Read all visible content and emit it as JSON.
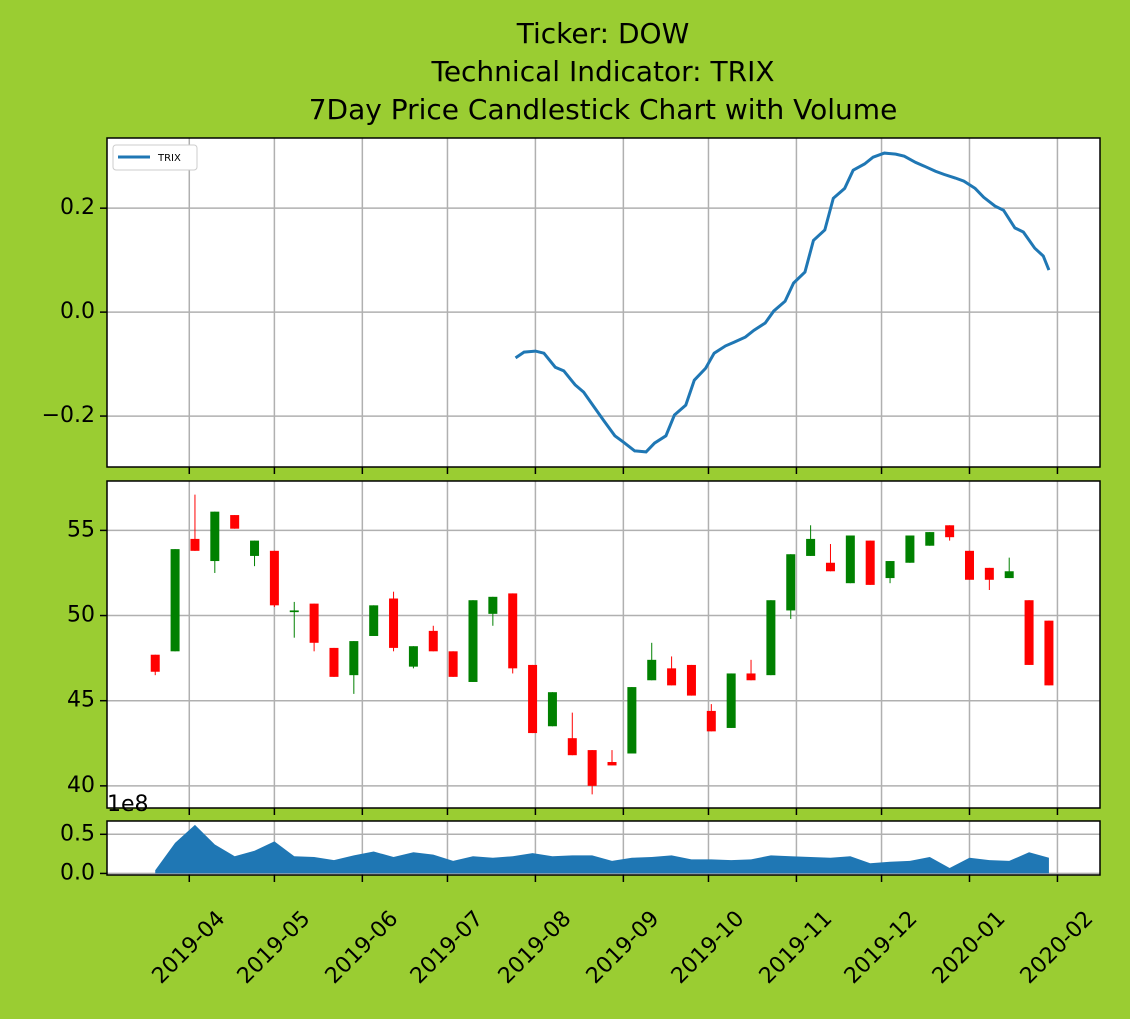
{
  "chart_data": [
    {
      "type": "line",
      "title": [
        "Ticker: DOW",
        "Technical Indicator: TRIX",
        "7Day Price Candlestick Chart with Volume"
      ],
      "x": [
        18102,
        18105,
        18109,
        18112,
        18116,
        18119,
        18123,
        18126,
        18130,
        18133,
        18137,
        18140,
        18144,
        18148,
        18151,
        18155,
        18158,
        18162,
        18165,
        18169,
        18172,
        18176,
        18179,
        18183,
        18186,
        18190,
        18193,
        18197,
        18200,
        18204,
        18207,
        18211,
        18214,
        18218,
        18221,
        18225,
        18228,
        18232,
        18236,
        18239,
        18243,
        18246,
        18250,
        18253,
        18257,
        18260,
        18264,
        18267,
        18271,
        18274,
        18278,
        18281,
        18285,
        18288,
        18290
      ],
      "series": [
        {
          "name": "TRIX",
          "color": "#1f77b4",
          "values": [
            -0.088,
            -0.077,
            -0.075,
            -0.079,
            -0.106,
            -0.113,
            -0.14,
            -0.154,
            -0.185,
            -0.208,
            -0.238,
            -0.25,
            -0.267,
            -0.269,
            -0.252,
            -0.238,
            -0.198,
            -0.179,
            -0.131,
            -0.108,
            -0.079,
            -0.065,
            -0.058,
            -0.048,
            -0.035,
            -0.021,
            0.002,
            0.021,
            0.056,
            0.077,
            0.138,
            0.158,
            0.219,
            0.238,
            0.273,
            0.285,
            0.298,
            0.306,
            0.304,
            0.3,
            0.288,
            0.281,
            0.271,
            0.265,
            0.258,
            0.252,
            0.238,
            0.221,
            0.204,
            0.196,
            0.162,
            0.154,
            0.123,
            0.108,
            0.081
          ]
        }
      ],
      "xlim": [
        17958,
        18308
      ],
      "ylim": [
        -0.298,
        0.335
      ],
      "yticks": [
        {
          "value": -0.2,
          "label": "−0.2"
        },
        {
          "value": 0,
          "label": "0.0"
        },
        0.2
      ],
      "grid": true,
      "legend": "upper left"
    },
    {
      "type": "candlestick",
      "x": [
        17975,
        17982,
        17989,
        17996,
        18003,
        18010,
        18017,
        18024,
        18031,
        18038,
        18045,
        18052,
        18059,
        18066,
        18073,
        18080,
        18087,
        18094,
        18101,
        18108,
        18115,
        18122,
        18129,
        18136,
        18143,
        18150,
        18157,
        18164,
        18171,
        18178,
        18185,
        18192,
        18199,
        18206,
        18213,
        18220,
        18227,
        18234,
        18241,
        18248,
        18255,
        18262,
        18269,
        18276,
        18283,
        18290
      ],
      "open": [
        47.7,
        47.9,
        54.5,
        53.2,
        55.9,
        53.5,
        53.8,
        50.2,
        50.7,
        48.1,
        46.5,
        48.8,
        51.0,
        47.0,
        49.1,
        47.9,
        46.1,
        50.1,
        51.3,
        47.1,
        43.5,
        42.8,
        42.1,
        41.4,
        41.9,
        46.2,
        46.9,
        47.1,
        44.4,
        43.4,
        46.6,
        46.5,
        50.3,
        53.5,
        53.1,
        51.9,
        54.4,
        52.2,
        53.1,
        54.1,
        55.3,
        53.8,
        52.8,
        52.2,
        50.9,
        49.7
      ],
      "high": [
        47.7,
        53.9,
        57.1,
        56.1,
        55.9,
        54.4,
        53.8,
        50.8,
        50.7,
        48.1,
        48.5,
        50.6,
        51.4,
        48.2,
        49.4,
        47.9,
        50.9,
        51.1,
        51.3,
        47.1,
        45.5,
        44.3,
        42.1,
        42.1,
        45.8,
        48.4,
        47.6,
        47.1,
        44.8,
        46.6,
        47.4,
        50.9,
        53.6,
        55.3,
        54.2,
        54.7,
        54.4,
        53.2,
        54.7,
        54.9,
        55.3,
        53.8,
        52.8,
        53.4,
        50.9,
        49.7
      ],
      "low": [
        46.5,
        47.9,
        53.8,
        52.5,
        55.1,
        52.9,
        50.5,
        48.7,
        47.9,
        46.4,
        45.4,
        48.8,
        47.9,
        46.9,
        47.9,
        46.4,
        46.1,
        49.4,
        46.6,
        43.1,
        43.5,
        41.8,
        39.5,
        41.2,
        41.9,
        46.2,
        45.9,
        45.3,
        43.2,
        43.4,
        46.2,
        46.5,
        49.8,
        53.5,
        52.6,
        51.9,
        51.8,
        51.9,
        53.1,
        54.1,
        54.4,
        52.1,
        51.5,
        52.2,
        47.1,
        45.9
      ],
      "close": [
        46.7,
        53.9,
        53.8,
        56.1,
        55.1,
        54.4,
        50.6,
        50.3,
        48.4,
        46.4,
        48.5,
        50.6,
        48.1,
        48.2,
        47.9,
        46.4,
        50.9,
        51.1,
        46.9,
        43.1,
        45.5,
        41.8,
        40.0,
        41.2,
        45.8,
        47.4,
        45.9,
        45.3,
        43.2,
        46.6,
        46.2,
        50.9,
        53.6,
        54.5,
        52.6,
        54.7,
        51.8,
        53.2,
        54.7,
        54.9,
        54.6,
        52.1,
        52.1,
        52.6,
        47.1,
        45.9
      ],
      "up_color": "#008000",
      "down_color": "#ff0000",
      "xlim": [
        17958,
        18308
      ],
      "ylim": [
        38.7,
        57.9
      ],
      "yticks": [
        40,
        45,
        50,
        55
      ],
      "grid": true
    },
    {
      "type": "area",
      "x": [
        17975,
        17982,
        17989,
        17996,
        18003,
        18010,
        18017,
        18024,
        18031,
        18038,
        18045,
        18052,
        18059,
        18066,
        18073,
        18080,
        18087,
        18094,
        18101,
        18108,
        18115,
        18122,
        18129,
        18136,
        18143,
        18150,
        18157,
        18164,
        18171,
        18178,
        18185,
        18192,
        18199,
        18206,
        18213,
        18220,
        18227,
        18234,
        18241,
        18248,
        18255,
        18262,
        18269,
        18276,
        18283,
        18290
      ],
      "values": [
        0.04,
        0.39,
        0.62,
        0.37,
        0.22,
        0.29,
        0.41,
        0.22,
        0.21,
        0.17,
        0.23,
        0.28,
        0.21,
        0.27,
        0.24,
        0.16,
        0.22,
        0.2,
        0.22,
        0.26,
        0.22,
        0.23,
        0.23,
        0.16,
        0.2,
        0.21,
        0.23,
        0.18,
        0.18,
        0.17,
        0.18,
        0.23,
        0.22,
        0.21,
        0.2,
        0.22,
        0.13,
        0.15,
        0.16,
        0.21,
        0.07,
        0.2,
        0.17,
        0.16,
        0.27,
        0.2
      ],
      "color": "#1f77b4",
      "offset_text": "1e8",
      "xlim": [
        17958,
        18308
      ],
      "xticks": [
        {
          "value": 17987,
          "label": "2019-04"
        },
        {
          "value": 18017,
          "label": "2019-05"
        },
        {
          "value": 18048,
          "label": "2019-06"
        },
        {
          "value": 18078,
          "label": "2019-07"
        },
        {
          "value": 18109,
          "label": "2019-08"
        },
        {
          "value": 18140,
          "label": "2019-09"
        },
        {
          "value": 18170,
          "label": "2019-10"
        },
        {
          "value": 18201,
          "label": "2019-11"
        },
        {
          "value": 18231,
          "label": "2019-12"
        },
        {
          "value": 18262,
          "label": "2020-01"
        },
        {
          "value": 18293,
          "label": "2020-02"
        }
      ],
      "ylim": [
        -0.02,
        0.67
      ],
      "yticks": [
        {
          "value": 0,
          "label": "0.0"
        },
        0.5
      ],
      "grid": true
    }
  ]
}
